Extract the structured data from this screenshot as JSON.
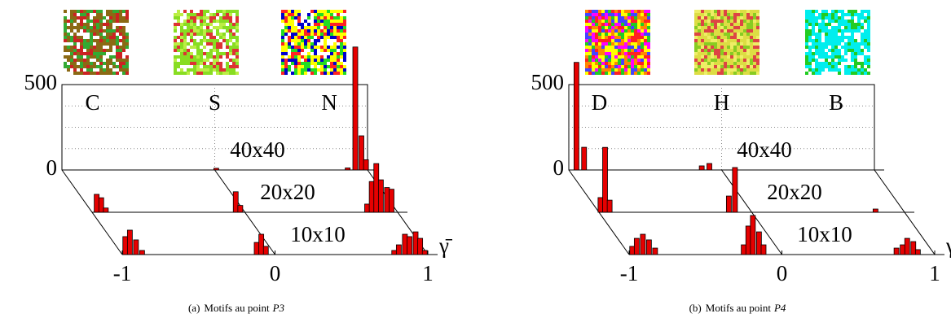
{
  "chart_data": [
    {
      "type": "histogram3d",
      "caption": {
        "label": "(a)",
        "text": "Motifs au point",
        "point": "P3"
      },
      "regions": [
        "C",
        "S",
        "N"
      ],
      "xlabel": "γ̄",
      "xlim": [
        -1,
        1
      ],
      "xticks": [
        -1,
        0,
        1
      ],
      "ylim": [
        0,
        500
      ],
      "yticks": [
        0,
        500
      ],
      "yminorticks": [
        125,
        250,
        375
      ],
      "grid": true,
      "series": [
        {
          "name": "40x40",
          "color": "#e60000",
          "x": [
            0.01,
            0.87,
            0.92,
            0.96,
            0.99
          ],
          "values": [
            10,
            12,
            720,
            200,
            60
          ]
        },
        {
          "name": "20x20",
          "color": "#e60000",
          "x": [
            -0.97,
            -0.94,
            -0.91,
            -0.06,
            -0.03,
            0.8,
            0.83,
            0.86,
            0.89,
            0.93,
            0.96
          ],
          "values": [
            105,
            85,
            25,
            120,
            40,
            48,
            180,
            285,
            190,
            145,
            135
          ]
        },
        {
          "name": "10x10",
          "color": "#e60000",
          "x": [
            -0.98,
            -0.95,
            -0.91,
            -0.87,
            -0.12,
            -0.09,
            -0.06,
            0.78,
            0.81,
            0.85,
            0.88,
            0.92,
            0.95,
            0.98
          ],
          "values": [
            105,
            143,
            86,
            24,
            71,
            119,
            48,
            24,
            57,
            119,
            105,
            133,
            95,
            24
          ]
        }
      ]
    },
    {
      "type": "histogram3d",
      "caption": {
        "label": "(b)",
        "text": "Motifs au point",
        "point": "P4"
      },
      "regions": [
        "D",
        "H",
        "B"
      ],
      "xlabel": "γ̄",
      "xlim": [
        -1,
        1
      ],
      "xticks": [
        -1,
        0,
        1
      ],
      "ylim": [
        0,
        500
      ],
      "yticks": [
        0,
        500
      ],
      "yminorticks": [
        125,
        250,
        375
      ],
      "grid": true,
      "series": [
        {
          "name": "40x40",
          "color": "#e60000",
          "x": [
            -0.95,
            -0.9,
            -0.13,
            -0.08
          ],
          "values": [
            630,
            133,
            24,
            38
          ]
        },
        {
          "name": "20x20",
          "color": "#e60000",
          "x": [
            -0.99,
            -0.96,
            -0.93,
            -0.15,
            -0.11,
            0.81
          ],
          "values": [
            86,
            380,
            71,
            95,
            262,
            19
          ]
        },
        {
          "name": "10x10",
          "color": "#e60000",
          "x": [
            -0.98,
            -0.95,
            -0.91,
            -0.87,
            -0.83,
            -0.25,
            -0.22,
            -0.19,
            -0.15,
            -0.12,
            0.75,
            0.79,
            0.82,
            0.86,
            0.89
          ],
          "values": [
            48,
            95,
            119,
            86,
            38,
            57,
            167,
            229,
            133,
            57,
            38,
            57,
            95,
            76,
            29
          ]
        }
      ]
    }
  ]
}
